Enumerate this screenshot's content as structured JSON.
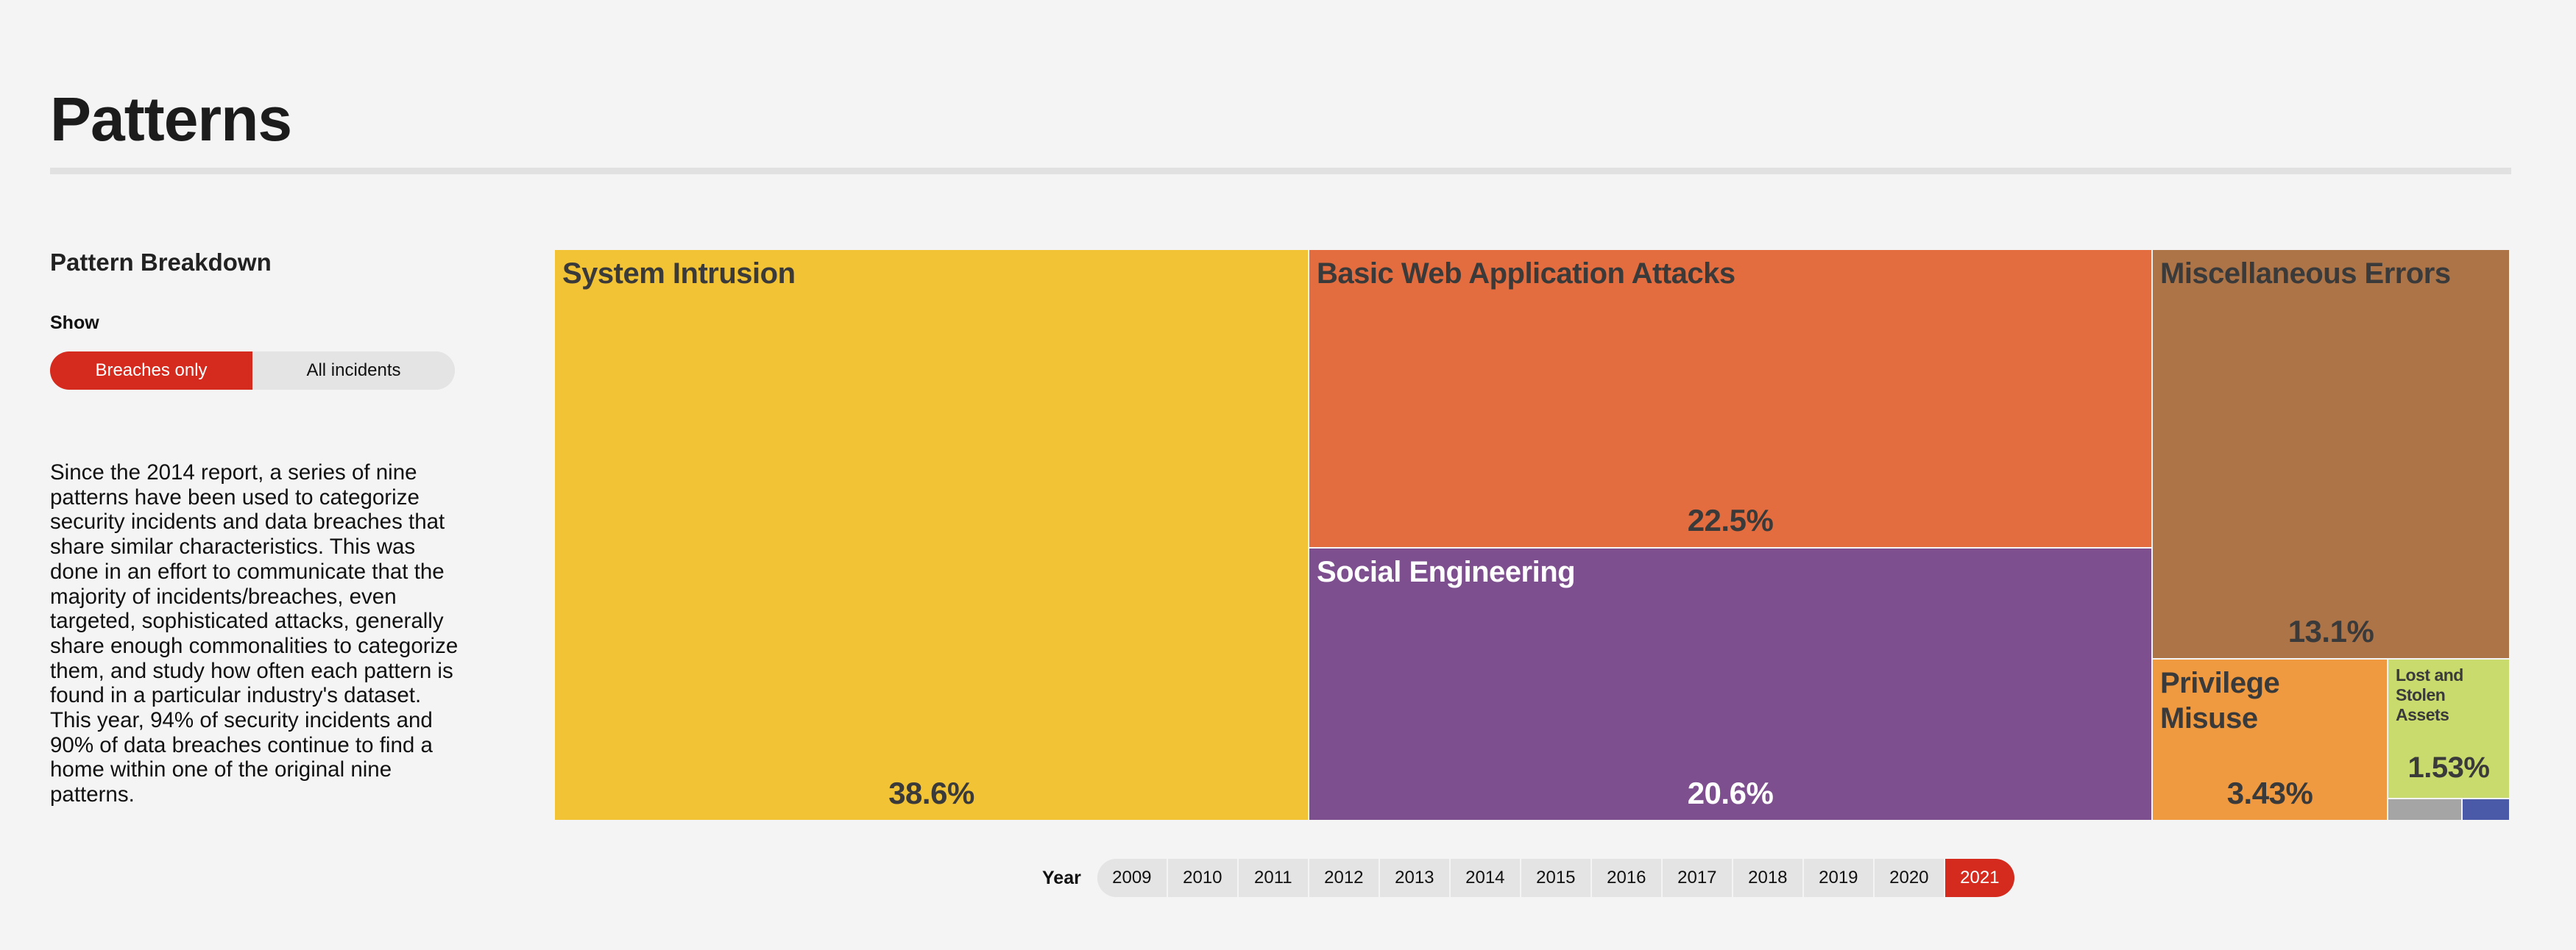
{
  "header": {
    "title": "Patterns"
  },
  "sidebar": {
    "section_title": "Pattern Breakdown",
    "show_label": "Show",
    "toggle": {
      "options": [
        "Breaches only",
        "All incidents"
      ],
      "selected": "Breaches only"
    },
    "description": "Since the 2014 report, a series of nine patterns have been used to categorize security incidents and data breaches that share similar characteristics. This was done in an effort to communicate that the majority of incidents/breaches, even targeted, sophisticated attacks, generally share enough commonalities to categorize them, and study how often each pattern is found in a particular industry's dataset. This year, 94% of security incidents and 90% of data breaches continue to find a home within one of the original nine patterns."
  },
  "colors": {
    "accent": "#d52b1e",
    "background": "#f4f4f4"
  },
  "chart_data": {
    "type": "treemap",
    "unit": "%",
    "items": [
      {
        "name": "System Intrusion",
        "value": 38.6,
        "label": "38.6%",
        "color": "#f2c335",
        "text_color": "#3a3a3a"
      },
      {
        "name": "Basic Web Application Attacks",
        "value": 22.5,
        "label": "22.5%",
        "color": "#e36d3e",
        "text_color": "#3a3a3a"
      },
      {
        "name": "Social Engineering",
        "value": 20.6,
        "label": "20.6%",
        "color": "#7e4f8e",
        "text_color": "#ffffff"
      },
      {
        "name": "Miscellaneous Errors",
        "value": 13.1,
        "label": "13.1%",
        "color": "#ad7448",
        "text_color": "#3a3a3a"
      },
      {
        "name": "Privilege Misuse",
        "value": 3.43,
        "label": "3.43%",
        "color": "#ef9a40",
        "text_color": "#3a3a3a"
      },
      {
        "name": "Lost and Stolen Assets",
        "value": 1.53,
        "label": "1.53%",
        "color": "#c8db6c",
        "text_color": "#3a3a3a"
      },
      {
        "name": "",
        "value": 0.5,
        "label": "",
        "color": "#a5a5a5",
        "text_color": "#3a3a3a"
      },
      {
        "name": "",
        "value": 0.3,
        "label": "",
        "color": "#4a5aa8",
        "text_color": "#ffffff"
      }
    ]
  },
  "years": {
    "label": "Year",
    "options": [
      "2009",
      "2010",
      "2011",
      "2012",
      "2013",
      "2014",
      "2015",
      "2016",
      "2017",
      "2018",
      "2019",
      "2020",
      "2021"
    ],
    "selected": "2021"
  }
}
